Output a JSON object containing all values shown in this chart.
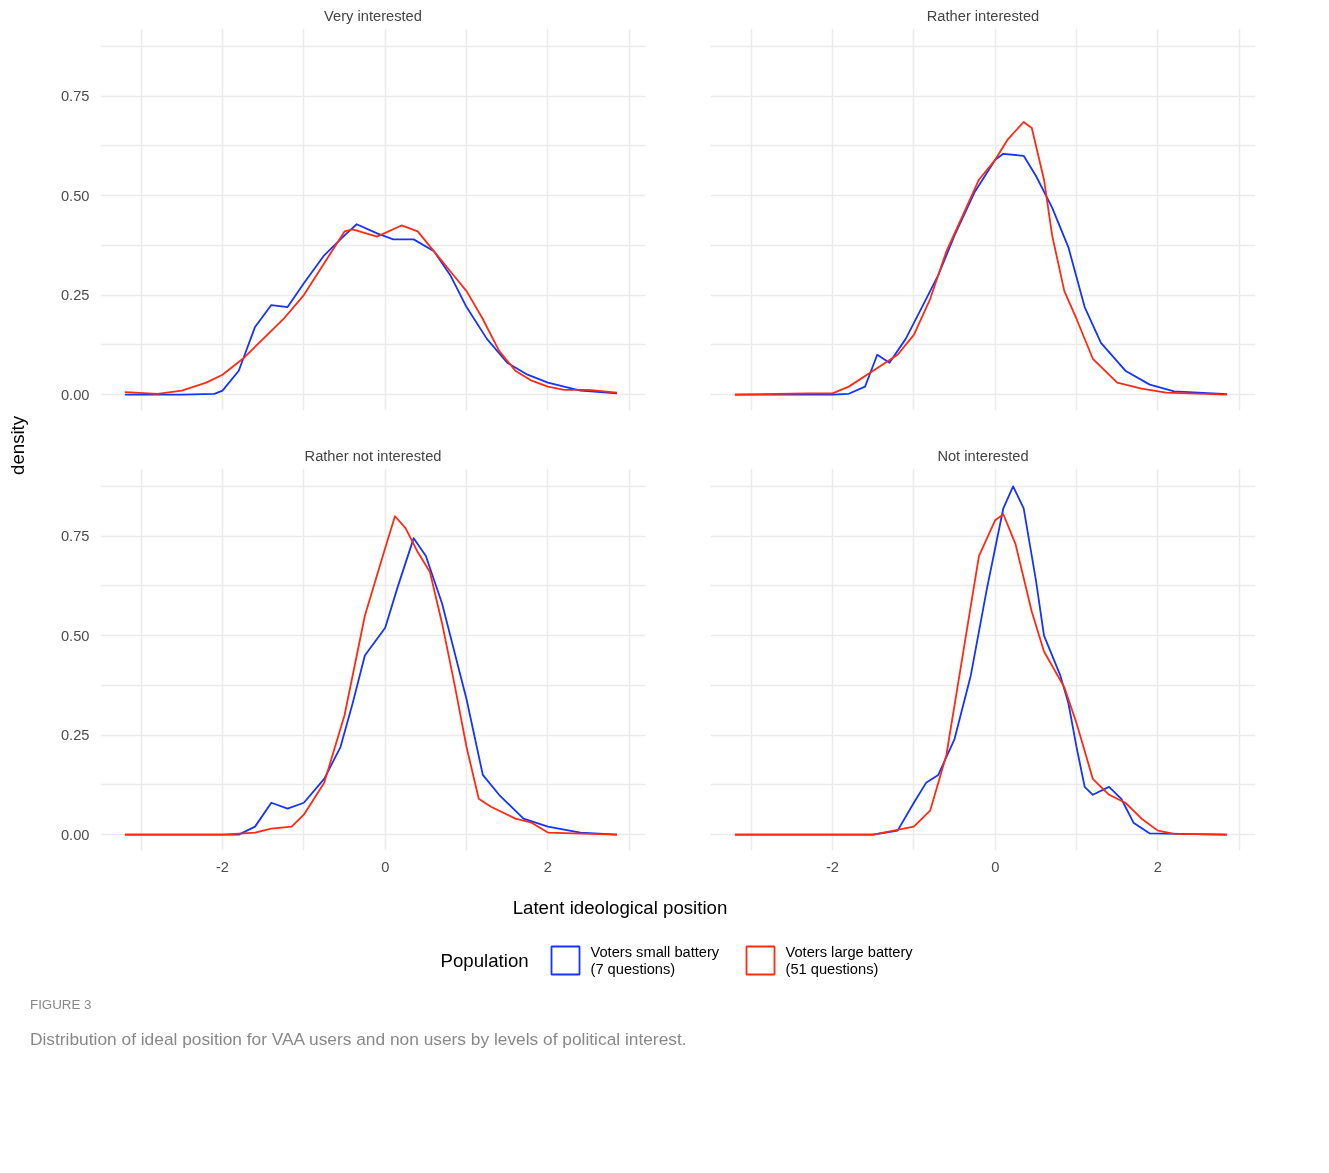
{
  "chart_data": [
    {
      "type": "line",
      "title": "Very interested",
      "ylabel": "density",
      "tick_labels": "y",
      "grid": true,
      "legend": "bottom",
      "legend_title": "Population",
      "xlim": [
        -3.5,
        3.2
      ],
      "ylim": [
        -0.04,
        0.92
      ],
      "xticks": [
        {
          "value": -3,
          "label": null
        },
        -2,
        {
          "value": -1,
          "label": null
        },
        0,
        {
          "value": 1,
          "label": null
        },
        2,
        {
          "value": 3,
          "label": null
        }
      ],
      "yticks": [
        {
          "value": 0,
          "label": "0.00"
        },
        {
          "value": 0.125,
          "label": null
        },
        {
          "value": 0.25,
          "label": "0.25"
        },
        {
          "value": 0.375,
          "label": null
        },
        {
          "value": 0.5,
          "label": "0.50"
        },
        {
          "value": 0.625,
          "label": null
        },
        {
          "value": 0.75,
          "label": "0.75"
        },
        {
          "value": 0.875,
          "label": null
        }
      ],
      "series": [
        {
          "name": "Voters small battery\n (7 questions)",
          "color": "#1434ff",
          "x": [
            -3.2,
            -2.5,
            -2.1,
            -2.0,
            -1.8,
            -1.6,
            -1.4,
            -1.2,
            -1.0,
            -0.75,
            -0.5,
            -0.35,
            -0.1,
            0.1,
            0.35,
            0.6,
            0.8,
            1.0,
            1.25,
            1.5,
            1.75,
            2.0,
            2.4,
            2.85
          ],
          "values": [
            0,
            0,
            0.002,
            0.01,
            0.06,
            0.17,
            0.225,
            0.22,
            0.28,
            0.35,
            0.4,
            0.428,
            0.405,
            0.39,
            0.39,
            0.36,
            0.3,
            0.22,
            0.14,
            0.08,
            0.05,
            0.03,
            0.01,
            0.003
          ]
        },
        {
          "name": "Voters large battery\n (51 questions)",
          "color": "#ff2a12",
          "x": [
            -3.2,
            -2.8,
            -2.5,
            -2.2,
            -2.0,
            -1.75,
            -1.5,
            -1.25,
            -1.0,
            -0.75,
            -0.5,
            -0.4,
            -0.1,
            0.2,
            0.4,
            0.6,
            0.8,
            1.0,
            1.2,
            1.4,
            1.6,
            1.8,
            2.0,
            2.2,
            2.5,
            2.85
          ],
          "values": [
            0.006,
            0.002,
            0.01,
            0.03,
            0.05,
            0.09,
            0.14,
            0.19,
            0.25,
            0.33,
            0.41,
            0.415,
            0.397,
            0.425,
            0.41,
            0.36,
            0.31,
            0.26,
            0.19,
            0.11,
            0.06,
            0.035,
            0.02,
            0.012,
            0.012,
            0.005
          ]
        }
      ]
    },
    {
      "type": "line",
      "title": "Rather interested",
      "tick_labels": false,
      "grid": true,
      "xlim": [
        -3.5,
        3.2
      ],
      "ylim": [
        -0.04,
        0.92
      ],
      "xticks": [
        {
          "value": -3,
          "label": null
        },
        -2,
        {
          "value": -1,
          "label": null
        },
        0,
        {
          "value": 1,
          "label": null
        },
        2,
        {
          "value": 3,
          "label": null
        }
      ],
      "yticks": [
        {
          "value": 0,
          "label": null
        },
        {
          "value": 0.125,
          "label": null
        },
        {
          "value": 0.25,
          "label": null
        },
        {
          "value": 0.375,
          "label": null
        },
        {
          "value": 0.5,
          "label": null
        },
        {
          "value": 0.625,
          "label": null
        },
        {
          "value": 0.75,
          "label": null
        },
        {
          "value": 0.875,
          "label": null
        }
      ],
      "series": [
        {
          "color": "#1434ff",
          "x": [
            -3.2,
            -2.0,
            -1.8,
            -1.6,
            -1.45,
            -1.3,
            -1.1,
            -0.9,
            -0.7,
            -0.5,
            -0.25,
            0,
            0.1,
            0.35,
            0.5,
            0.7,
            0.9,
            1.1,
            1.3,
            1.6,
            1.9,
            2.2,
            2.85
          ],
          "values": [
            0,
            0,
            0.002,
            0.02,
            0.1,
            0.08,
            0.14,
            0.22,
            0.3,
            0.4,
            0.51,
            0.59,
            0.605,
            0.6,
            0.55,
            0.47,
            0.37,
            0.22,
            0.13,
            0.06,
            0.025,
            0.008,
            0.001
          ]
        },
        {
          "color": "#ff2a12",
          "x": [
            -3.2,
            -2.3,
            -2.0,
            -1.8,
            -1.5,
            -1.2,
            -1.0,
            -0.8,
            -0.6,
            -0.4,
            -0.2,
            0,
            0.15,
            0.35,
            0.45,
            0.6,
            0.7,
            0.85,
            1.0,
            1.2,
            1.5,
            1.8,
            2.1,
            2.85
          ],
          "values": [
            0,
            0.003,
            0.003,
            0.02,
            0.06,
            0.1,
            0.15,
            0.24,
            0.36,
            0.45,
            0.54,
            0.59,
            0.64,
            0.685,
            0.67,
            0.54,
            0.4,
            0.26,
            0.19,
            0.09,
            0.03,
            0.015,
            0.005,
            0
          ]
        }
      ]
    },
    {
      "type": "line",
      "title": "Rather not interested",
      "xlabel": "Latent ideological position",
      "grid": true,
      "xlim": [
        -3.5,
        3.2
      ],
      "ylim": [
        -0.04,
        0.92
      ],
      "xticks": [
        {
          "value": -3,
          "label": null
        },
        -2,
        {
          "value": -1,
          "label": null
        },
        0,
        {
          "value": 1,
          "label": null
        },
        2,
        {
          "value": 3,
          "label": null
        }
      ],
      "yticks": [
        {
          "value": 0,
          "label": "0.00"
        },
        {
          "value": 0.125,
          "label": null
        },
        {
          "value": 0.25,
          "label": "0.25"
        },
        {
          "value": 0.375,
          "label": null
        },
        {
          "value": 0.5,
          "label": "0.50"
        },
        {
          "value": 0.625,
          "label": null
        },
        {
          "value": 0.75,
          "label": "0.75"
        },
        {
          "value": 0.875,
          "label": null
        }
      ],
      "series": [
        {
          "color": "#1434ff",
          "x": [
            -3.2,
            -1.8,
            -1.6,
            -1.4,
            -1.2,
            -1.0,
            -0.75,
            -0.55,
            -0.4,
            -0.25,
            0,
            0.15,
            0.35,
            0.5,
            0.7,
            0.9,
            1.0,
            1.2,
            1.4,
            1.7,
            2.0,
            2.4,
            2.85
          ],
          "values": [
            0,
            0,
            0.02,
            0.08,
            0.065,
            0.08,
            0.14,
            0.22,
            0.33,
            0.45,
            0.52,
            0.62,
            0.745,
            0.7,
            0.58,
            0.42,
            0.34,
            0.15,
            0.1,
            0.04,
            0.02,
            0.005,
            0
          ]
        },
        {
          "color": "#ff2a12",
          "x": [
            -3.2,
            -2.0,
            -1.6,
            -1.4,
            -1.15,
            -1.0,
            -0.75,
            -0.5,
            -0.25,
            0,
            0.12,
            0.25,
            0.4,
            0.55,
            0.7,
            0.85,
            1.0,
            1.15,
            1.3,
            1.6,
            1.8,
            2.0,
            2.85
          ],
          "values": [
            0,
            0,
            0.005,
            0.015,
            0.02,
            0.05,
            0.13,
            0.3,
            0.55,
            0.72,
            0.8,
            0.77,
            0.71,
            0.66,
            0.53,
            0.38,
            0.22,
            0.09,
            0.07,
            0.04,
            0.03,
            0.005,
            0
          ]
        }
      ]
    },
    {
      "type": "line",
      "title": "Not interested",
      "tick_labels": "x",
      "grid": true,
      "xlim": [
        -3.5,
        3.2
      ],
      "ylim": [
        -0.04,
        0.92
      ],
      "xticks": [
        {
          "value": -3,
          "label": null
        },
        -2,
        {
          "value": -1,
          "label": null
        },
        0,
        {
          "value": 1,
          "label": null
        },
        2,
        {
          "value": 3,
          "label": null
        }
      ],
      "yticks": [
        {
          "value": 0,
          "label": null
        },
        {
          "value": 0.125,
          "label": null
        },
        {
          "value": 0.25,
          "label": null
        },
        {
          "value": 0.375,
          "label": null
        },
        {
          "value": 0.5,
          "label": null
        },
        {
          "value": 0.625,
          "label": null
        },
        {
          "value": 0.75,
          "label": null
        },
        {
          "value": 0.875,
          "label": null
        }
      ],
      "annotations": [
        "FIGURE 3",
        "Distribution of ideal position for VAA users and non users by levels of political interest."
      ],
      "series": [
        {
          "color": "#1434ff",
          "x": [
            -3.2,
            -1.5,
            -1.2,
            -1.0,
            -0.85,
            -0.7,
            -0.5,
            -0.3,
            -0.1,
            0.1,
            0.22,
            0.35,
            0.5,
            0.6,
            0.8,
            0.9,
            1.0,
            1.1,
            1.2,
            1.4,
            1.55,
            1.7,
            1.9,
            2.85
          ],
          "values": [
            0,
            0,
            0.01,
            0.08,
            0.13,
            0.15,
            0.24,
            0.4,
            0.62,
            0.82,
            0.875,
            0.82,
            0.64,
            0.5,
            0.4,
            0.33,
            0.22,
            0.12,
            0.1,
            0.12,
            0.09,
            0.03,
            0.003,
            0
          ]
        },
        {
          "color": "#ff2a12",
          "x": [
            -3.2,
            -1.5,
            -1.0,
            -0.8,
            -0.6,
            -0.4,
            -0.2,
            0,
            0.1,
            0.25,
            0.45,
            0.6,
            0.85,
            1.0,
            1.2,
            1.4,
            1.6,
            1.8,
            2.0,
            2.2,
            2.85
          ],
          "values": [
            0,
            0,
            0.02,
            0.06,
            0.2,
            0.45,
            0.7,
            0.79,
            0.805,
            0.73,
            0.56,
            0.46,
            0.37,
            0.28,
            0.14,
            0.1,
            0.08,
            0.04,
            0.01,
            0.002,
            0
          ]
        }
      ]
    }
  ]
}
